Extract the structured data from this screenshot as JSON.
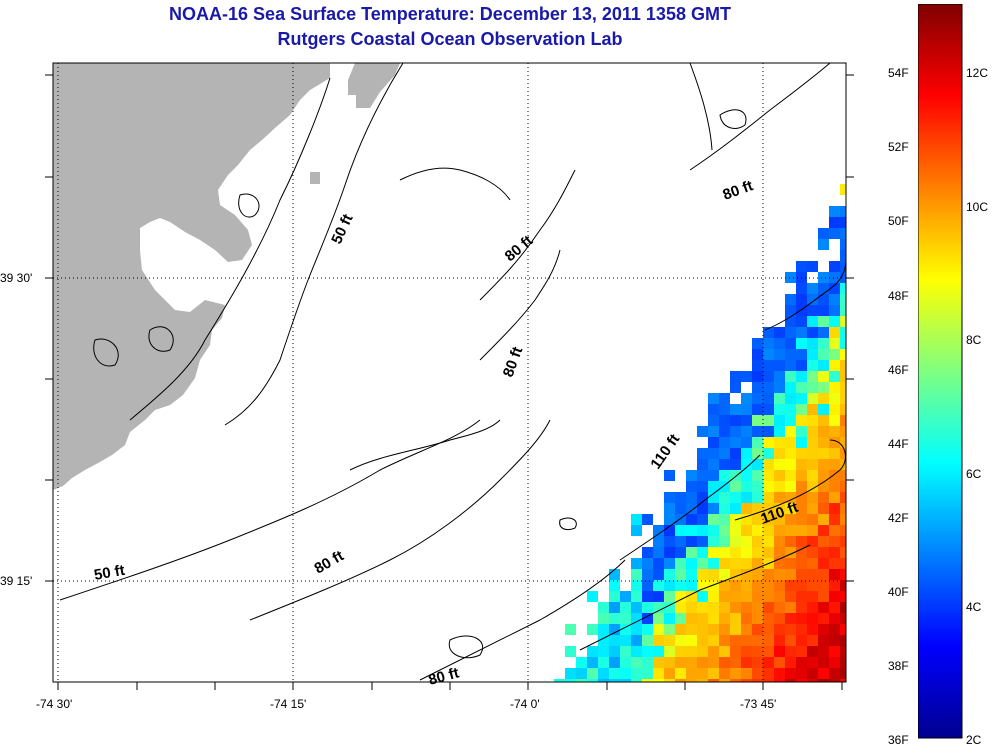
{
  "titles": {
    "line1": "NOAA-16 Sea Surface Temperature:  December 13, 2011 1358 GMT",
    "line2": "Rutgers Coastal Ocean Observation Lab"
  },
  "axes": {
    "x_ticks": [
      "-74 30'",
      "-74 15'",
      "-74 0'",
      "-73 45'"
    ],
    "y_ticks": [
      "39 30'",
      "39 15'"
    ]
  },
  "contours": [
    {
      "label": "50 ft"
    },
    {
      "label": "80 ft"
    },
    {
      "label": "80 ft"
    },
    {
      "label": "80 ft"
    },
    {
      "label": "110 ft"
    },
    {
      "label": "110 ft"
    },
    {
      "label": "80 ft"
    },
    {
      "label": "50 ft"
    },
    {
      "label": "80 ft"
    }
  ],
  "colorbar": {
    "fahrenheit": [
      "54F",
      "52F",
      "50F",
      "48F",
      "46F",
      "44F",
      "42F",
      "40F",
      "38F",
      "36F"
    ],
    "celsius": [
      "12C",
      "10C",
      "8C",
      "6C",
      "4C",
      "2C"
    ]
  },
  "colors": {
    "land": "#b4b4b4",
    "title": "#1a1aa8",
    "cold": "#0000ff",
    "warm": "#ff4000"
  }
}
